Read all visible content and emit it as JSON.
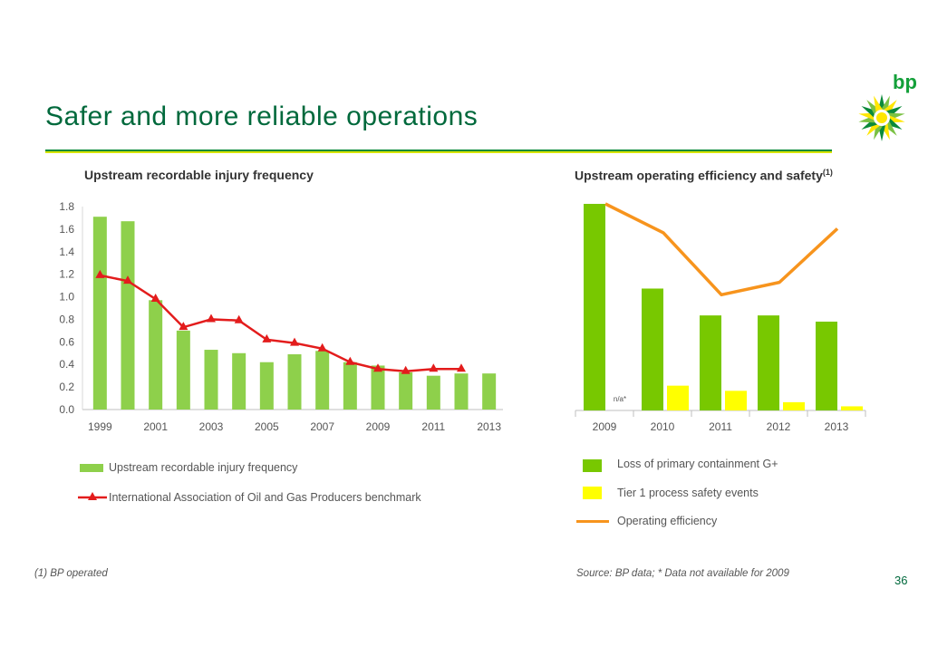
{
  "slide": {
    "title": "Safer and more reliable operations",
    "brand": "bp",
    "page_number": "36",
    "footnote_left": "(1) BP operated",
    "footnote_right": "Source: BP data; * Data not available for 2009",
    "colors": {
      "title_green": "#00693c",
      "bar_green": "#8ed04b",
      "dark_green": "#78c800",
      "yellow": "#ffff00",
      "orange": "#f7941d",
      "red": "#e31c1c"
    }
  },
  "chart_data": [
    {
      "type": "bar",
      "title": "Upstream recordable injury frequency",
      "categories": [
        "1999",
        "2000",
        "2001",
        "2002",
        "2003",
        "2004",
        "2005",
        "2006",
        "2007",
        "2008",
        "2009",
        "2010",
        "2011",
        "2012",
        "2013"
      ],
      "tick_labels": [
        "1999",
        "2001",
        "2003",
        "2005",
        "2007",
        "2009",
        "2011",
        "2013"
      ],
      "ylim": [
        0,
        1.8
      ],
      "yticks": [
        "0.0",
        "0.2",
        "0.4",
        "0.6",
        "0.8",
        "1.0",
        "1.2",
        "1.4",
        "1.6",
        "1.8"
      ],
      "series": [
        {
          "name": "Upstream recordable injury frequency",
          "type": "bar",
          "values": [
            1.71,
            1.67,
            0.97,
            0.7,
            0.53,
            0.5,
            0.42,
            0.49,
            0.52,
            0.42,
            0.39,
            0.33,
            0.3,
            0.32,
            0.32
          ]
        },
        {
          "name": "International Association of Oil and Gas Producers benchmark",
          "type": "line",
          "values": [
            1.19,
            1.14,
            0.98,
            0.73,
            0.8,
            0.79,
            0.62,
            0.59,
            0.54,
            0.42,
            0.36,
            0.34,
            0.36,
            0.36,
            null
          ]
        }
      ]
    },
    {
      "type": "bar",
      "title": "Upstream operating efficiency and safety",
      "title_superscript": "(1)",
      "categories": [
        "2009",
        "2010",
        "2011",
        "2012",
        "2013"
      ],
      "series": [
        {
          "name": "Loss of primary containment G+",
          "type": "bar",
          "values": [
            100,
            59,
            46,
            46,
            43
          ]
        },
        {
          "name": "Tier 1 process safety events",
          "type": "bar",
          "values": [
            null,
            12,
            9.5,
            4,
            2
          ]
        },
        {
          "name": "Operating efficiency",
          "type": "line",
          "values": [
            100,
            86,
            56,
            62,
            88
          ]
        }
      ],
      "annotations": [
        "n/a*"
      ],
      "ylim": [
        0,
        100
      ]
    }
  ]
}
